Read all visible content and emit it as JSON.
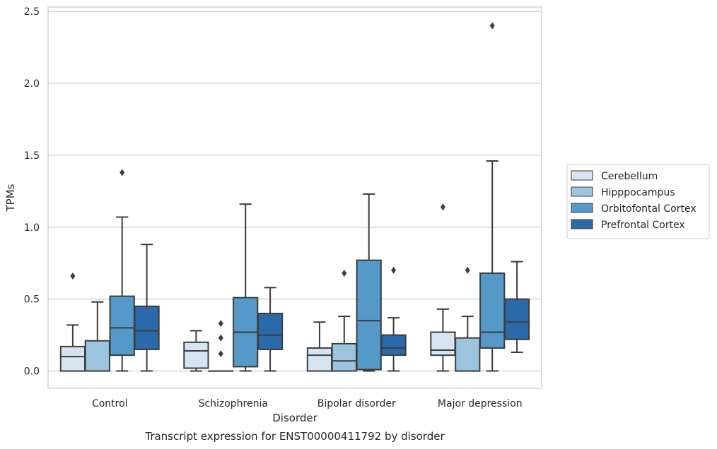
{
  "chart_data": {
    "type": "box",
    "caption": "Transcript expression for ENST00000411792 by disorder",
    "xlabel": "Disorder",
    "ylabel": "TPMs",
    "ylim": [
      -0.12,
      2.53
    ],
    "yticks": [
      0.0,
      0.5,
      1.0,
      1.5,
      2.0,
      2.5
    ],
    "ytick_labels": [
      "0.0",
      "0.5",
      "1.0",
      "1.5",
      "2.0",
      "2.5"
    ],
    "grid": "horizontal",
    "legend_position": "right",
    "categories": [
      "Control",
      "Schizophrenia",
      "Bipolar disorder",
      "Major depression"
    ],
    "series": [
      {
        "name": "Cerebellum",
        "color": "#d6e4f2",
        "boxes": [
          {
            "whisker_low": 0.0,
            "q1": 0.0,
            "median": 0.1,
            "q3": 0.17,
            "whisker_high": 0.32,
            "outliers": [
              0.66
            ]
          },
          {
            "whisker_low": 0.0,
            "q1": 0.02,
            "median": 0.14,
            "q3": 0.2,
            "whisker_high": 0.28,
            "outliers": []
          },
          {
            "whisker_low": 0.0,
            "q1": 0.0,
            "median": 0.11,
            "q3": 0.16,
            "whisker_high": 0.34,
            "outliers": []
          },
          {
            "whisker_low": 0.0,
            "q1": 0.11,
            "median": 0.145,
            "q3": 0.27,
            "whisker_high": 0.43,
            "outliers": [
              1.14
            ]
          }
        ]
      },
      {
        "name": "Hipppocampus",
        "color": "#9cc4de",
        "boxes": [
          {
            "whisker_low": 0.0,
            "q1": 0.0,
            "median": 0.0,
            "q3": 0.21,
            "whisker_high": 0.48,
            "outliers": []
          },
          {
            "whisker_low": 0.0,
            "q1": 0.0,
            "median": 0.0,
            "q3": 0.0,
            "whisker_high": 0.0,
            "outliers": [
              0.12,
              0.23,
              0.33
            ]
          },
          {
            "whisker_low": 0.0,
            "q1": 0.0,
            "median": 0.07,
            "q3": 0.19,
            "whisker_high": 0.38,
            "outliers": [
              0.68
            ]
          },
          {
            "whisker_low": 0.0,
            "q1": 0.0,
            "median": 0.0,
            "q3": 0.23,
            "whisker_high": 0.38,
            "outliers": [
              0.7
            ]
          }
        ]
      },
      {
        "name": "Orbitofontal Cortex",
        "color": "#5499c8",
        "boxes": [
          {
            "whisker_low": 0.0,
            "q1": 0.11,
            "median": 0.3,
            "q3": 0.52,
            "whisker_high": 1.07,
            "outliers": [
              1.38
            ]
          },
          {
            "whisker_low": 0.0,
            "q1": 0.03,
            "median": 0.27,
            "q3": 0.51,
            "whisker_high": 1.16,
            "outliers": []
          },
          {
            "whisker_low": 0.0,
            "q1": 0.01,
            "median": 0.35,
            "q3": 0.77,
            "whisker_high": 1.23,
            "outliers": []
          },
          {
            "whisker_low": 0.0,
            "q1": 0.16,
            "median": 0.27,
            "q3": 0.68,
            "whisker_high": 1.46,
            "outliers": [
              2.4
            ]
          }
        ]
      },
      {
        "name": "Prefrontal Cortex",
        "color": "#2a69aa",
        "boxes": [
          {
            "whisker_low": 0.0,
            "q1": 0.15,
            "median": 0.28,
            "q3": 0.45,
            "whisker_high": 0.88,
            "outliers": []
          },
          {
            "whisker_low": 0.0,
            "q1": 0.15,
            "median": 0.25,
            "q3": 0.4,
            "whisker_high": 0.58,
            "outliers": []
          },
          {
            "whisker_low": 0.0,
            "q1": 0.11,
            "median": 0.16,
            "q3": 0.25,
            "whisker_high": 0.37,
            "outliers": [
              0.7
            ]
          },
          {
            "whisker_low": 0.13,
            "q1": 0.22,
            "median": 0.34,
            "q3": 0.5,
            "whisker_high": 0.76,
            "outliers": []
          }
        ]
      }
    ]
  }
}
